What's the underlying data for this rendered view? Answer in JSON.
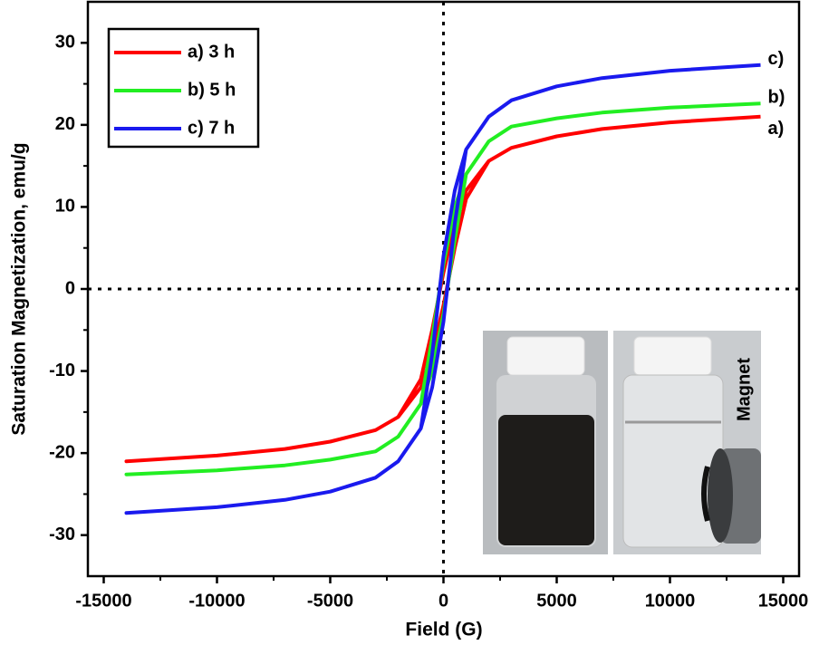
{
  "chart_data": {
    "type": "line",
    "xlabel": "Field (G)",
    "ylabel": "Saturation Magnetization, emu/g",
    "xlim": [
      -15700,
      15700
    ],
    "ylim": [
      -35,
      35
    ],
    "xticks": [
      -15000,
      -10000,
      -5000,
      0,
      5000,
      10000,
      15000
    ],
    "yticks": [
      -30,
      -20,
      -10,
      0,
      10,
      20,
      30
    ],
    "legend": "upper left",
    "inset_label": "Magnet",
    "x": [
      14000,
      10000,
      7000,
      5000,
      3000,
      2000,
      1000,
      500,
      0,
      -500,
      -1000,
      -2000,
      -3000,
      -5000,
      -7000,
      -10000,
      -14000,
      -10000,
      -7000,
      -5000,
      -3000,
      -2000,
      -1000,
      -500,
      0,
      500,
      1000,
      2000,
      3000,
      5000,
      7000,
      10000,
      14000
    ],
    "series": [
      {
        "name": "a) 3 h",
        "end_label": "a)",
        "color": "#ff0000",
        "values": [
          21,
          20.3,
          19.5,
          18.6,
          17.2,
          15.6,
          12,
          8,
          2,
          -5,
          -11,
          -15.6,
          -17.2,
          -18.6,
          -19.5,
          -20.3,
          -21,
          -20.3,
          -19.5,
          -18.6,
          -17.2,
          -15.6,
          -12,
          -8,
          -2,
          5,
          11,
          15.6,
          17.2,
          18.6,
          19.5,
          20.3,
          21
        ]
      },
      {
        "name": "b) 5 h",
        "end_label": "b)",
        "color": "#22ee22",
        "values": [
          22.6,
          22.1,
          21.5,
          20.8,
          19.8,
          18,
          14,
          10,
          3,
          -6,
          -14,
          -18,
          -19.8,
          -20.8,
          -21.5,
          -22.1,
          -22.6,
          -22.1,
          -21.5,
          -20.8,
          -19.8,
          -18,
          -14,
          -10,
          -3,
          6,
          14,
          18,
          19.8,
          20.8,
          21.5,
          22.1,
          22.6
        ]
      },
      {
        "name": "c) 7 h",
        "end_label": "c)",
        "color": "#1a1aee",
        "values": [
          27.3,
          26.6,
          25.7,
          24.7,
          23,
          21,
          17,
          12,
          4,
          -8,
          -17,
          -21,
          -23,
          -24.7,
          -25.7,
          -26.6,
          -27.3,
          -26.6,
          -25.7,
          -24.7,
          -23,
          -21,
          -17,
          -12,
          -4,
          8,
          17,
          21,
          23,
          24.7,
          25.7,
          26.6,
          27.3
        ]
      }
    ]
  }
}
